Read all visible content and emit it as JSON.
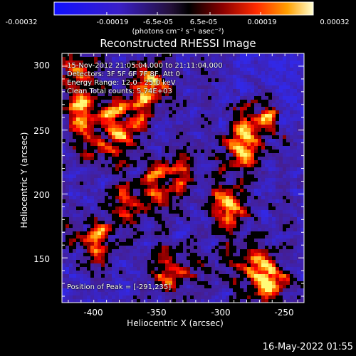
{
  "colorbar": {
    "tick_labels": [
      "-0.00032",
      "-0.00019",
      "-6.5e-05",
      "6.5e-05",
      "0.00019",
      "0.00032"
    ],
    "unit_label": "(photons cm⁻² s⁻¹ asec⁻²)",
    "range": [
      -0.00032,
      0.00032
    ]
  },
  "chart_data": {
    "type": "heatmap",
    "title": "Reconstructed RHESSI Image",
    "xlabel": "Heliocentric X (arcsec)",
    "ylabel": "Heliocentric Y (arcsec)",
    "xlim": [
      -430,
      -240
    ],
    "ylim": [
      115,
      310
    ],
    "x_ticks": [
      -400,
      -350,
      -300,
      -250
    ],
    "y_ticks": [
      150,
      200,
      250,
      300
    ],
    "annotations": [
      "15-Nov-2012 21:05:04.000 to 21:11:04.000",
      "Detectors: 3F 5F 6F 7F 8F, Att 0",
      "Energy Range: 12.0 - 25.0 keV",
      "Clean      Total counts: 5.74E+03"
    ],
    "peak_label": "Position of Peak = [-291,235]",
    "peak_position": [
      -291,
      235
    ],
    "colormap": "red-temperature with blue-purple negatives",
    "bright_regions": [
      {
        "x": -415,
        "y": 265
      },
      {
        "x": -395,
        "y": 240
      },
      {
        "x": -380,
        "y": 262
      },
      {
        "x": -405,
        "y": 165
      },
      {
        "x": -345,
        "y": 215
      },
      {
        "x": -370,
        "y": 195
      },
      {
        "x": -300,
        "y": 190
      },
      {
        "x": -291,
        "y": 235
      },
      {
        "x": -275,
        "y": 258
      },
      {
        "x": -285,
        "y": 145
      },
      {
        "x": -265,
        "y": 130
      },
      {
        "x": -340,
        "y": 140
      },
      {
        "x": -425,
        "y": 295
      },
      {
        "x": -360,
        "y": 285
      }
    ]
  },
  "footer_date": "16-May-2022 01:55"
}
